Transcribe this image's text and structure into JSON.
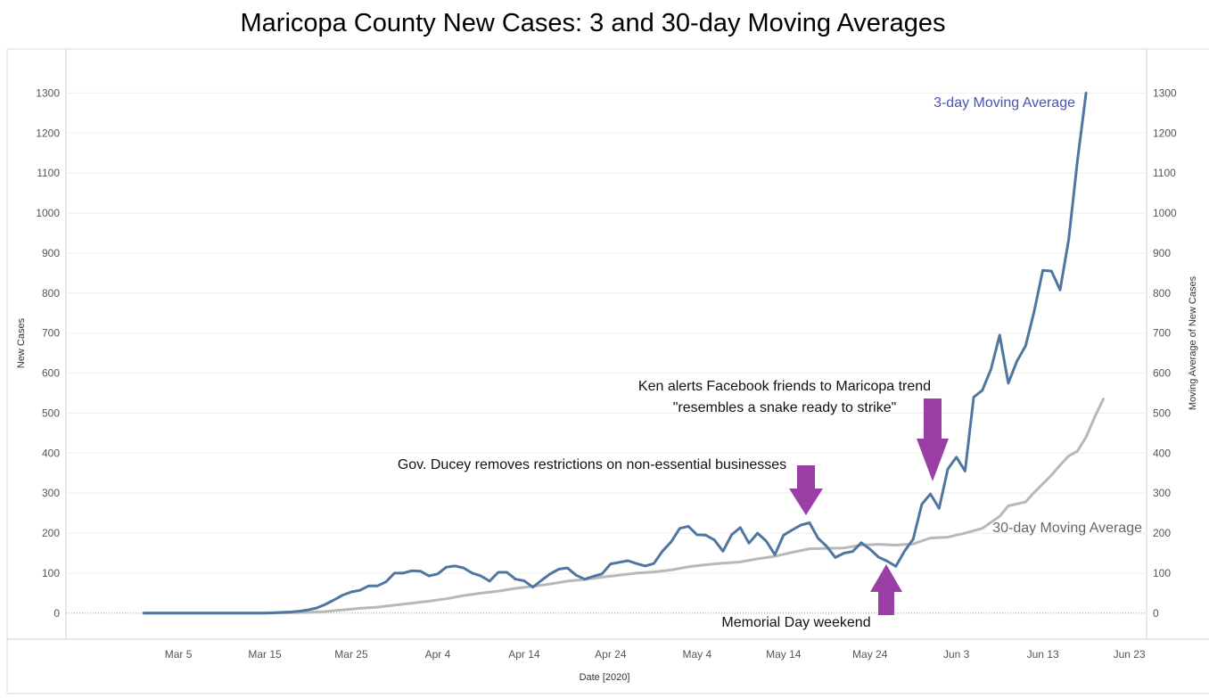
{
  "chart_data": {
    "type": "line",
    "title": "Maricopa County New Cases: 3 and 30-day Moving Averages",
    "xlabel": "Date [2020]",
    "ylabel_left": "New Cases",
    "ylabel_right": "Moving Average of New Cases",
    "x_ticks": [
      {
        "date": "2020-03-05",
        "label": "Mar 5"
      },
      {
        "date": "2020-03-15",
        "label": "Mar 15"
      },
      {
        "date": "2020-03-25",
        "label": "Mar 25"
      },
      {
        "date": "2020-04-04",
        "label": "Apr 4"
      },
      {
        "date": "2020-04-14",
        "label": "Apr 14"
      },
      {
        "date": "2020-04-24",
        "label": "Apr 24"
      },
      {
        "date": "2020-05-04",
        "label": "May 4"
      },
      {
        "date": "2020-05-14",
        "label": "May 14"
      },
      {
        "date": "2020-05-24",
        "label": "May 24"
      },
      {
        "date": "2020-06-03",
        "label": "Jun 3"
      },
      {
        "date": "2020-06-13",
        "label": "Jun 13"
      },
      {
        "date": "2020-06-23",
        "label": "Jun 23"
      }
    ],
    "xlim": [
      "2020-02-21",
      "2020-06-25"
    ],
    "ylim": [
      -65,
      1410
    ],
    "y_ticks": [
      0,
      100,
      200,
      300,
      400,
      500,
      600,
      700,
      800,
      900,
      1000,
      1100,
      1200,
      1300
    ],
    "grid": true,
    "series": [
      {
        "name": "3-day Moving Average",
        "color": "#4e76a0",
        "values": [
          [
            "2020-03-01",
            0
          ],
          [
            "2020-03-02",
            0
          ],
          [
            "2020-03-03",
            0
          ],
          [
            "2020-03-04",
            0
          ],
          [
            "2020-03-05",
            0
          ],
          [
            "2020-03-06",
            0
          ],
          [
            "2020-03-07",
            0
          ],
          [
            "2020-03-08",
            0
          ],
          [
            "2020-03-09",
            0
          ],
          [
            "2020-03-10",
            0
          ],
          [
            "2020-03-11",
            0
          ],
          [
            "2020-03-12",
            0
          ],
          [
            "2020-03-13",
            0
          ],
          [
            "2020-03-14",
            0
          ],
          [
            "2020-03-15",
            0
          ],
          [
            "2020-03-16",
            1
          ],
          [
            "2020-03-17",
            2
          ],
          [
            "2020-03-18",
            3
          ],
          [
            "2020-03-19",
            5
          ],
          [
            "2020-03-20",
            8
          ],
          [
            "2020-03-21",
            13
          ],
          [
            "2020-03-22",
            22
          ],
          [
            "2020-03-23",
            33
          ],
          [
            "2020-03-24",
            45
          ],
          [
            "2020-03-25",
            53
          ],
          [
            "2020-03-26",
            57
          ],
          [
            "2020-03-27",
            68
          ],
          [
            "2020-03-28",
            68
          ],
          [
            "2020-03-29",
            78
          ],
          [
            "2020-03-30",
            100
          ],
          [
            "2020-03-31",
            100
          ],
          [
            "2020-04-01",
            106
          ],
          [
            "2020-04-02",
            105
          ],
          [
            "2020-04-03",
            93
          ],
          [
            "2020-04-04",
            98
          ],
          [
            "2020-04-05",
            115
          ],
          [
            "2020-04-06",
            118
          ],
          [
            "2020-04-07",
            113
          ],
          [
            "2020-04-08",
            100
          ],
          [
            "2020-04-09",
            93
          ],
          [
            "2020-04-10",
            80
          ],
          [
            "2020-04-11",
            102
          ],
          [
            "2020-04-12",
            102
          ],
          [
            "2020-04-13",
            85
          ],
          [
            "2020-04-14",
            81
          ],
          [
            "2020-04-15",
            65
          ],
          [
            "2020-04-16",
            82
          ],
          [
            "2020-04-17",
            98
          ],
          [
            "2020-04-18",
            110
          ],
          [
            "2020-04-19",
            113
          ],
          [
            "2020-04-20",
            95
          ],
          [
            "2020-04-21",
            85
          ],
          [
            "2020-04-22",
            92
          ],
          [
            "2020-04-23",
            98
          ],
          [
            "2020-04-24",
            123
          ],
          [
            "2020-04-25",
            127
          ],
          [
            "2020-04-26",
            131
          ],
          [
            "2020-04-27",
            124
          ],
          [
            "2020-04-28",
            118
          ],
          [
            "2020-04-29",
            124
          ],
          [
            "2020-04-30",
            155
          ],
          [
            "2020-05-01",
            178
          ],
          [
            "2020-05-02",
            212
          ],
          [
            "2020-05-03",
            217
          ],
          [
            "2020-05-04",
            196
          ],
          [
            "2020-05-05",
            195
          ],
          [
            "2020-05-06",
            183
          ],
          [
            "2020-05-07",
            155
          ],
          [
            "2020-05-08",
            196
          ],
          [
            "2020-05-09",
            214
          ],
          [
            "2020-05-10",
            175
          ],
          [
            "2020-05-11",
            200
          ],
          [
            "2020-05-12",
            180
          ],
          [
            "2020-05-13",
            146
          ],
          [
            "2020-05-14",
            195
          ],
          [
            "2020-05-15",
            208
          ],
          [
            "2020-05-16",
            220
          ],
          [
            "2020-05-17",
            226
          ],
          [
            "2020-05-18",
            187
          ],
          [
            "2020-05-19",
            167
          ],
          [
            "2020-05-20",
            139
          ],
          [
            "2020-05-21",
            150
          ],
          [
            "2020-05-22",
            154
          ],
          [
            "2020-05-23",
            176
          ],
          [
            "2020-05-24",
            160
          ],
          [
            "2020-05-25",
            140
          ],
          [
            "2020-05-26",
            130
          ],
          [
            "2020-05-27",
            117
          ],
          [
            "2020-05-28",
            155
          ],
          [
            "2020-05-29",
            185
          ],
          [
            "2020-05-30",
            272
          ],
          [
            "2020-05-31",
            298
          ],
          [
            "2020-06-01",
            262
          ],
          [
            "2020-06-02",
            360
          ],
          [
            "2020-06-03",
            390
          ],
          [
            "2020-06-04",
            355
          ],
          [
            "2020-06-05",
            540
          ],
          [
            "2020-06-06",
            557
          ],
          [
            "2020-06-07",
            610
          ],
          [
            "2020-06-08",
            695
          ],
          [
            "2020-06-09",
            575
          ],
          [
            "2020-06-10",
            630
          ],
          [
            "2020-06-11",
            668
          ],
          [
            "2020-06-12",
            755
          ],
          [
            "2020-06-13",
            857
          ],
          [
            "2020-06-14",
            855
          ],
          [
            "2020-06-15",
            808
          ],
          [
            "2020-06-16",
            935
          ],
          [
            "2020-06-17",
            1130
          ],
          [
            "2020-06-18",
            1300
          ]
        ]
      },
      {
        "name": "30-day Moving Average",
        "color": "#b8b8b8",
        "values": [
          [
            "2020-03-01",
            0
          ],
          [
            "2020-03-05",
            0
          ],
          [
            "2020-03-10",
            0
          ],
          [
            "2020-03-15",
            0
          ],
          [
            "2020-03-18",
            1
          ],
          [
            "2020-03-20",
            2
          ],
          [
            "2020-03-22",
            4
          ],
          [
            "2020-03-24",
            8
          ],
          [
            "2020-03-26",
            12
          ],
          [
            "2020-03-28",
            15
          ],
          [
            "2020-03-30",
            20
          ],
          [
            "2020-04-01",
            25
          ],
          [
            "2020-04-03",
            30
          ],
          [
            "2020-04-05",
            36
          ],
          [
            "2020-04-07",
            44
          ],
          [
            "2020-04-09",
            50
          ],
          [
            "2020-04-11",
            55
          ],
          [
            "2020-04-13",
            62
          ],
          [
            "2020-04-15",
            67
          ],
          [
            "2020-04-17",
            73
          ],
          [
            "2020-04-19",
            80
          ],
          [
            "2020-04-21",
            84
          ],
          [
            "2020-04-23",
            90
          ],
          [
            "2020-04-25",
            95
          ],
          [
            "2020-04-27",
            100
          ],
          [
            "2020-04-29",
            103
          ],
          [
            "2020-05-01",
            108
          ],
          [
            "2020-05-03",
            116
          ],
          [
            "2020-05-05",
            121
          ],
          [
            "2020-05-07",
            125
          ],
          [
            "2020-05-09",
            128
          ],
          [
            "2020-05-11",
            136
          ],
          [
            "2020-05-13",
            142
          ],
          [
            "2020-05-15",
            152
          ],
          [
            "2020-05-17",
            161
          ],
          [
            "2020-05-19",
            162
          ],
          [
            "2020-05-21",
            163
          ],
          [
            "2020-05-23",
            170
          ],
          [
            "2020-05-25",
            172
          ],
          [
            "2020-05-27",
            170
          ],
          [
            "2020-05-29",
            173
          ],
          [
            "2020-05-31",
            188
          ],
          [
            "2020-06-02",
            190
          ],
          [
            "2020-06-04",
            200
          ],
          [
            "2020-06-06",
            212
          ],
          [
            "2020-06-08",
            242
          ],
          [
            "2020-06-09",
            268
          ],
          [
            "2020-06-11",
            278
          ],
          [
            "2020-06-12",
            302
          ],
          [
            "2020-06-14",
            345
          ],
          [
            "2020-06-15",
            370
          ],
          [
            "2020-06-16",
            393
          ],
          [
            "2020-06-17",
            405
          ],
          [
            "2020-06-18",
            440
          ],
          [
            "2020-06-19",
            490
          ],
          [
            "2020-06-20",
            535
          ]
        ]
      }
    ],
    "annotations": {
      "ducey": "Gov. Ducey removes restrictions on non-essential businesses",
      "ken_line1": "Ken alerts Facebook friends to Maricopa trend",
      "ken_line2": "\"resembles a snake ready to strike\"",
      "memorial": "Memorial Day weekend",
      "arrow_color": "#9a3fa5"
    }
  }
}
